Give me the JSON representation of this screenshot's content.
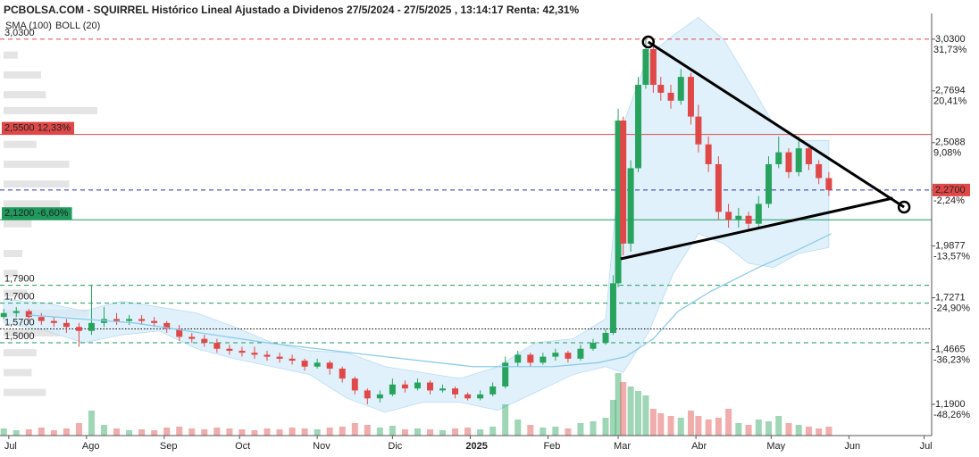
{
  "chart_data": {
    "type": "candlestick",
    "title": "PCBOLSA.COM - SQUIRREL Histórico Lineal Ajustado a Dividenos 27/5/2024 - 27/5/2025 , 13:14:17 Renta: 42,31%",
    "legend": [
      {
        "name": "SMA (100)",
        "color": "#8ccbea"
      },
      {
        "name": "BOLL (20)",
        "color": "#c8c8c8"
      }
    ],
    "xlim": [
      -3.5,
      368
    ],
    "ylim": [
      1.0325,
      3.16
    ],
    "xticks": [
      {
        "value": 0,
        "label": "Jul"
      },
      {
        "value": 31,
        "label": "Ago"
      },
      {
        "value": 62,
        "label": "Sep"
      },
      {
        "value": 92,
        "label": "Oct"
      },
      {
        "value": 123,
        "label": "Nov"
      },
      {
        "value": 153,
        "label": "Dic"
      },
      {
        "value": 184,
        "label": "2025",
        "bold": true
      },
      {
        "value": 215,
        "label": "Feb"
      },
      {
        "value": 243,
        "label": "Mar"
      },
      {
        "value": 274,
        "label": "Abr"
      },
      {
        "value": 304,
        "label": "May"
      },
      {
        "value": 335,
        "label": "Jun"
      },
      {
        "value": 365,
        "label": "Jul"
      }
    ],
    "yticks": [
      {
        "value": 3.03,
        "label": "3,0300",
        "pct": "31,73%"
      },
      {
        "value": 2.7694,
        "label": "2,7694",
        "pct": "20,41%"
      },
      {
        "value": 2.5088,
        "label": "2,5088",
        "pct": "9,08%"
      },
      {
        "value": 2.27,
        "label": "2,2700",
        "pct": "-2,24%",
        "box": "#e04848"
      },
      {
        "value": 1.9877,
        "label": "1,9877",
        "pct": "-13,57%"
      },
      {
        "value": 1.7271,
        "label": "1,7271",
        "pct": "-24,90%"
      },
      {
        "value": 1.4665,
        "label": "1,4665",
        "pct": "-36,23%"
      },
      {
        "value": 1.19,
        "label": "1,1900",
        "pct": "-48,26%"
      }
    ],
    "levels": [
      {
        "value": 3.03,
        "label": "3,0300",
        "color": "#e04848",
        "style": "dashed"
      },
      {
        "value": 2.55,
        "label": "2,5500  12,33%",
        "color": "#e04848",
        "style": "solid",
        "box": true
      },
      {
        "value": 2.27,
        "color": "#2c2cc8",
        "style": "dashed"
      },
      {
        "value": 2.12,
        "label": "2,1200  -6,60%",
        "color": "#1f9a5c",
        "style": "solid",
        "box": true
      },
      {
        "value": 1.79,
        "label": "1,7900",
        "color": "#1f9a5c",
        "style": "dashed"
      },
      {
        "value": 1.7,
        "label": "1,7000",
        "color": "#1f9a5c",
        "style": "dashed"
      },
      {
        "value": 1.57,
        "label": "1,5700",
        "color": "#000000",
        "style": "dotted"
      },
      {
        "value": 1.5,
        "label": "1,5000",
        "color": "#1f9a5c",
        "style": "dashed"
      }
    ],
    "up_color": "#27a35e",
    "down_color": "#e04848",
    "x": [
      -2,
      3,
      8,
      13,
      18,
      23,
      28,
      33,
      38,
      43,
      48,
      53,
      58,
      63,
      68,
      73,
      78,
      83,
      88,
      93,
      98,
      103,
      108,
      113,
      118,
      123,
      128,
      133,
      138,
      143,
      148,
      153,
      158,
      163,
      168,
      173,
      178,
      183,
      188,
      193,
      198,
      203,
      208,
      213,
      218,
      223,
      228,
      233,
      238,
      241,
      243,
      245,
      248,
      251,
      254,
      257,
      260,
      264,
      268,
      272,
      275,
      279,
      283,
      287,
      291,
      295,
      299,
      303,
      307,
      311,
      315,
      319,
      323,
      327
    ],
    "open": [
      1.63,
      1.65,
      1.66,
      1.63,
      1.61,
      1.6,
      1.58,
      1.56,
      1.6,
      1.62,
      1.61,
      1.62,
      1.61,
      1.6,
      1.57,
      1.53,
      1.52,
      1.5,
      1.47,
      1.46,
      1.45,
      1.44,
      1.43,
      1.42,
      1.41,
      1.38,
      1.4,
      1.37,
      1.32,
      1.26,
      1.22,
      1.24,
      1.29,
      1.27,
      1.3,
      1.26,
      1.27,
      1.24,
      1.22,
      1.24,
      1.28,
      1.4,
      1.44,
      1.4,
      1.43,
      1.45,
      1.42,
      1.47,
      1.5,
      1.55,
      1.8,
      2.62,
      2.0,
      2.38,
      2.8,
      2.98,
      2.8,
      2.76,
      2.72,
      2.84,
      2.64,
      2.5,
      2.4,
      2.16,
      2.12,
      2.14,
      2.1,
      2.2,
      2.4,
      2.46,
      2.36,
      2.48,
      2.4,
      2.33
    ],
    "high": [
      1.67,
      1.68,
      1.67,
      1.65,
      1.63,
      1.62,
      1.6,
      1.79,
      1.68,
      1.65,
      1.64,
      1.64,
      1.63,
      1.61,
      1.59,
      1.55,
      1.54,
      1.52,
      1.49,
      1.48,
      1.48,
      1.46,
      1.45,
      1.44,
      1.42,
      1.42,
      1.41,
      1.38,
      1.33,
      1.27,
      1.26,
      1.32,
      1.31,
      1.32,
      1.31,
      1.29,
      1.28,
      1.25,
      1.26,
      1.3,
      1.43,
      1.46,
      1.45,
      1.45,
      1.47,
      1.46,
      1.49,
      1.52,
      1.57,
      1.84,
      2.68,
      2.64,
      2.42,
      2.84,
      3.03,
      3.0,
      2.84,
      2.8,
      2.88,
      2.86,
      2.7,
      2.54,
      2.44,
      2.2,
      2.18,
      2.16,
      2.24,
      2.44,
      2.54,
      2.48,
      2.54,
      2.5,
      2.42,
      2.36
    ],
    "low": [
      1.62,
      1.63,
      1.61,
      1.59,
      1.58,
      1.55,
      1.48,
      1.54,
      1.58,
      1.59,
      1.59,
      1.59,
      1.58,
      1.55,
      1.51,
      1.5,
      1.48,
      1.45,
      1.44,
      1.43,
      1.42,
      1.41,
      1.4,
      1.39,
      1.36,
      1.37,
      1.34,
      1.3,
      1.24,
      1.19,
      1.2,
      1.23,
      1.25,
      1.26,
      1.24,
      1.25,
      1.22,
      1.21,
      1.21,
      1.23,
      1.27,
      1.38,
      1.38,
      1.39,
      1.41,
      1.4,
      1.41,
      1.46,
      1.49,
      1.54,
      1.78,
      1.94,
      1.96,
      2.36,
      2.78,
      2.76,
      2.72,
      2.68,
      2.7,
      2.6,
      2.46,
      2.36,
      2.12,
      2.08,
      2.08,
      2.06,
      2.08,
      2.18,
      2.38,
      2.33,
      2.34,
      2.37,
      2.3,
      2.24
    ],
    "close": [
      1.65,
      1.66,
      1.63,
      1.61,
      1.6,
      1.58,
      1.56,
      1.6,
      1.62,
      1.61,
      1.62,
      1.61,
      1.6,
      1.57,
      1.53,
      1.52,
      1.5,
      1.47,
      1.46,
      1.45,
      1.44,
      1.43,
      1.42,
      1.41,
      1.38,
      1.4,
      1.37,
      1.32,
      1.26,
      1.22,
      1.24,
      1.29,
      1.27,
      1.3,
      1.26,
      1.27,
      1.24,
      1.22,
      1.24,
      1.28,
      1.4,
      1.44,
      1.4,
      1.43,
      1.45,
      1.42,
      1.47,
      1.5,
      1.55,
      1.8,
      2.62,
      2.0,
      2.38,
      2.8,
      2.98,
      2.8,
      2.76,
      2.72,
      2.84,
      2.64,
      2.5,
      2.4,
      2.16,
      2.12,
      2.14,
      2.1,
      2.2,
      2.4,
      2.46,
      2.36,
      2.48,
      2.4,
      2.33,
      2.27
    ],
    "vlim": [
      0,
      100
    ],
    "volume": [
      8,
      6,
      7,
      9,
      6,
      8,
      14,
      28,
      12,
      8,
      6,
      7,
      6,
      9,
      10,
      8,
      7,
      9,
      8,
      7,
      6,
      8,
      7,
      9,
      8,
      7,
      9,
      10,
      14,
      12,
      9,
      11,
      7,
      8,
      7,
      6,
      8,
      9,
      7,
      10,
      35,
      18,
      12,
      9,
      10,
      8,
      14,
      16,
      20,
      40,
      70,
      60,
      55,
      50,
      45,
      30,
      25,
      22,
      20,
      28,
      22,
      18,
      20,
      30,
      14,
      12,
      18,
      16,
      22,
      14,
      12,
      10,
      8,
      10
    ],
    "volume_profile": {
      "price": [
        2.95,
        2.85,
        2.75,
        2.67,
        2.58,
        2.5,
        2.4,
        2.3,
        2.2,
        2.1,
        1.95,
        1.85,
        1.75,
        1.65,
        1.55,
        1.45,
        1.35,
        1.25
      ],
      "size": [
        15,
        40,
        45,
        100,
        60,
        35,
        70,
        70,
        60,
        30,
        20,
        15,
        25,
        90,
        60,
        35,
        30,
        45
      ]
    },
    "sma": {
      "color": "#8ccbea",
      "x": [
        8,
        50,
        103,
        150,
        185,
        217,
        235,
        246,
        257,
        267,
        280,
        299,
        315,
        328
      ],
      "values": [
        1.64,
        1.6,
        1.5,
        1.43,
        1.38,
        1.38,
        1.4,
        1.43,
        1.52,
        1.66,
        1.76,
        1.88,
        1.97,
        2.05
      ]
    },
    "bollinger": {
      "color": "#d6ecfa",
      "x": [
        -2,
        15,
        30,
        45,
        60,
        75,
        90,
        105,
        120,
        135,
        150,
        165,
        180,
        195,
        210,
        225,
        238,
        245,
        255,
        265,
        275,
        285,
        295,
        305,
        315,
        327
      ],
      "upper": [
        1.72,
        1.7,
        1.66,
        1.71,
        1.68,
        1.65,
        1.58,
        1.5,
        1.46,
        1.45,
        1.38,
        1.35,
        1.32,
        1.38,
        1.5,
        1.52,
        1.62,
        2.6,
        2.95,
        3.05,
        3.14,
        3.03,
        2.82,
        2.6,
        2.52,
        2.52
      ],
      "lower": [
        1.6,
        1.56,
        1.5,
        1.54,
        1.56,
        1.47,
        1.42,
        1.38,
        1.34,
        1.22,
        1.15,
        1.2,
        1.2,
        1.16,
        1.25,
        1.34,
        1.38,
        1.35,
        1.55,
        1.85,
        2.05,
        2.0,
        1.9,
        1.88,
        1.95,
        1.98
      ]
    },
    "trendlines": [
      {
        "x": [
          255,
          357
        ],
        "y": [
          3.016,
          2.184
        ],
        "endpoints": true
      },
      {
        "x": [
          244,
          352.5
        ],
        "y": [
          1.923,
          2.229
        ],
        "endpoints": false
      }
    ]
  }
}
